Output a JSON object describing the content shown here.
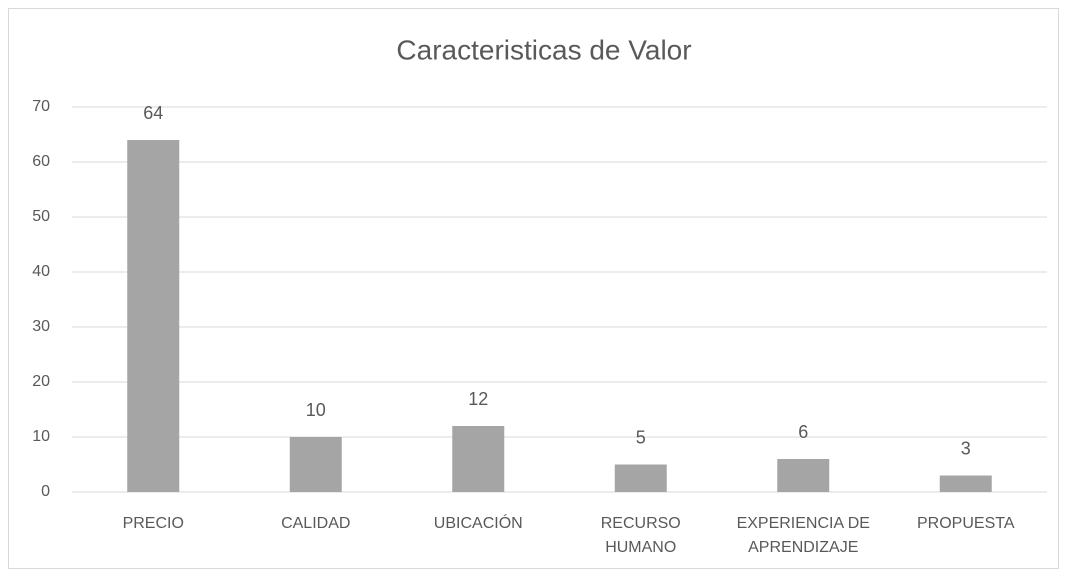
{
  "chart_data": {
    "type": "bar",
    "title": "Caracteristicas de Valor",
    "categories": [
      "PRECIO",
      "CALIDAD",
      "UBICACIÓN",
      "RECURSO\nHUMANO",
      "EXPERIENCIA DE\nAPRENDIZAJE",
      "PROPUESTA"
    ],
    "values": [
      64,
      10,
      12,
      5,
      6,
      3
    ],
    "color": "#a5a5a5",
    "ylim": [
      0,
      70
    ],
    "yticks": [
      0,
      10,
      20,
      30,
      40,
      50,
      60,
      70
    ],
    "grid": true
  }
}
